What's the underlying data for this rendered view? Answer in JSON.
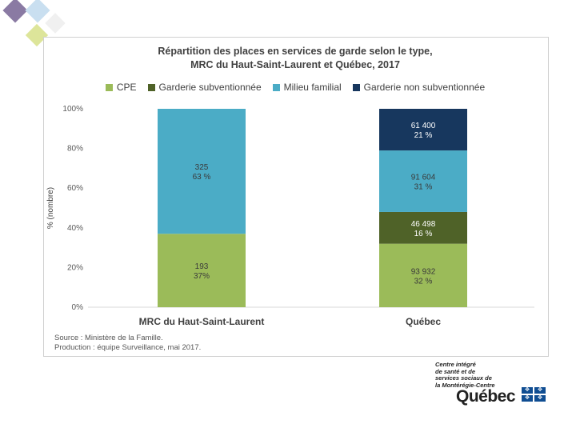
{
  "chart_data": {
    "type": "bar",
    "stacked": true,
    "title_lines": [
      "Répartition des places en services de garde selon le type,",
      "MRC du Haut-Saint-Laurent et Québec, 2017"
    ],
    "ylabel": "% (nombre)",
    "ylim": [
      0,
      100
    ],
    "yticks": [
      "0%",
      "20%",
      "40%",
      "60%",
      "80%",
      "100%"
    ],
    "ytick_values": [
      0,
      20,
      40,
      60,
      80,
      100
    ],
    "categories": [
      "MRC du Haut-Saint-Laurent",
      "Québec"
    ],
    "legend_position": "top",
    "series": [
      {
        "name": "CPE",
        "color": "#9bbb59",
        "values": [
          37,
          32
        ],
        "counts": [
          "193",
          "93 932"
        ],
        "percents": [
          "37%",
          "32 %"
        ]
      },
      {
        "name": "Garderie subventionnée",
        "color": "#4f6228",
        "values": [
          0,
          16
        ],
        "counts": [
          "",
          "46 498"
        ],
        "percents": [
          "",
          "16 %"
        ]
      },
      {
        "name": "Milieu familial",
        "color": "#4bacc6",
        "values": [
          63,
          31
        ],
        "counts": [
          "325",
          "91 604"
        ],
        "percents": [
          "63 %",
          "31 %"
        ]
      },
      {
        "name": "Garderie non subventionnée",
        "color": "#17375e",
        "values": [
          0,
          21
        ],
        "counts": [
          "",
          "61 400"
        ],
        "percents": [
          "",
          "21 %"
        ]
      }
    ]
  },
  "source": {
    "line1": "Source : Ministère de la Famille.",
    "line2": "Production : équipe Surveillance, mai 2017."
  },
  "logo": {
    "line1": "Centre intégré",
    "line2": "de santé et de",
    "line3": "services sociaux de",
    "line4": "la Montérégie-Centre",
    "name": "Québec"
  },
  "colors": {
    "deco_purple": "#8a7aa3",
    "deco_blue": "#c9dff0",
    "deco_yellow": "#dde59a"
  }
}
